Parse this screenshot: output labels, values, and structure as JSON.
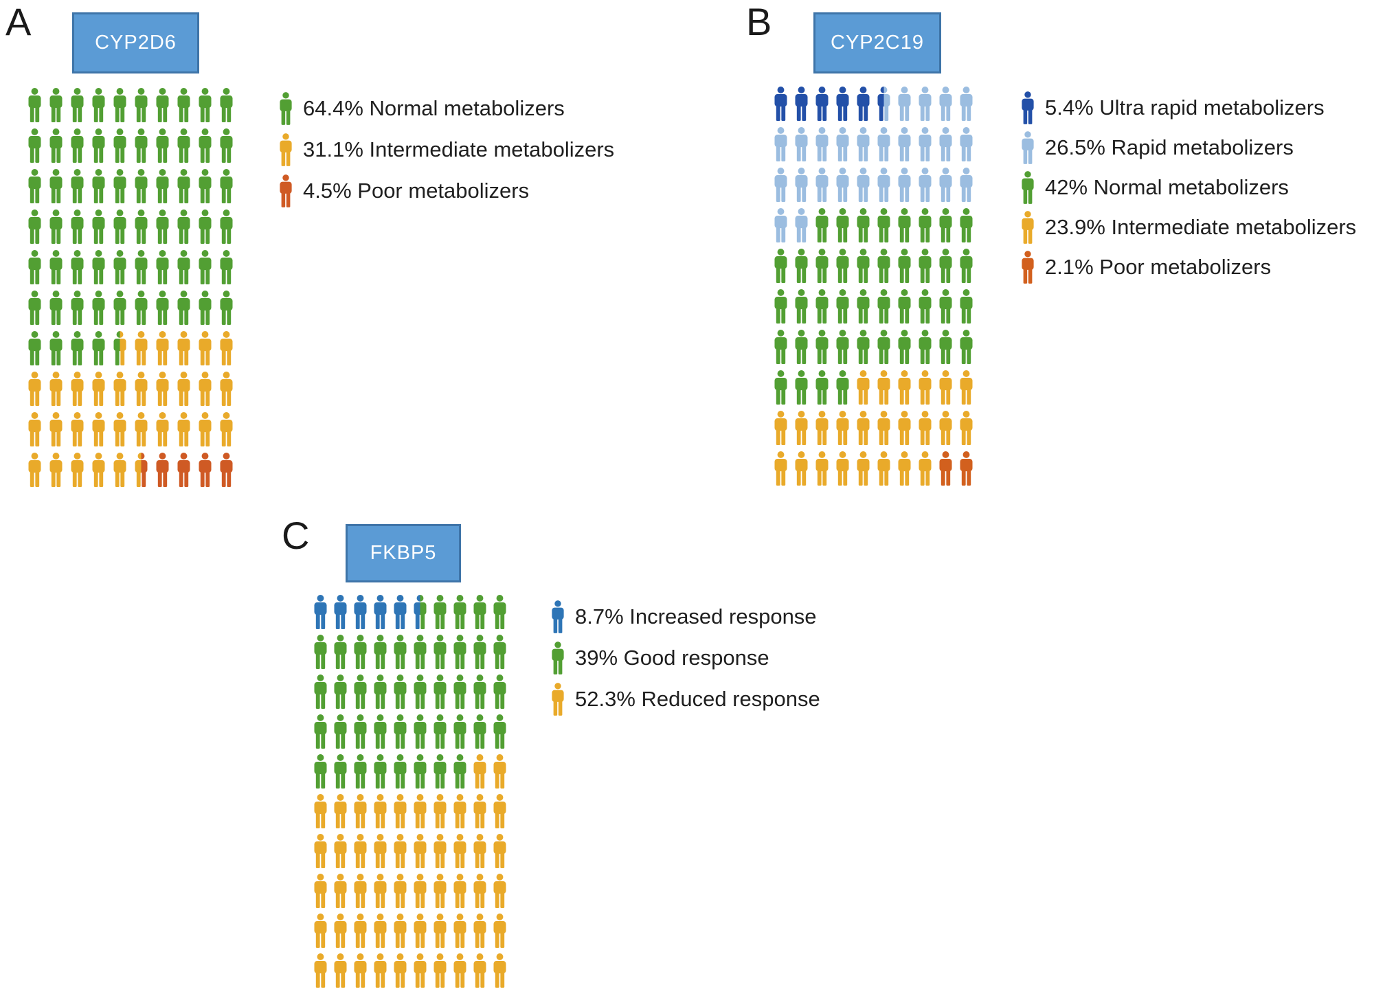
{
  "figure": {
    "background": "#ffffff",
    "title_box": {
      "fill": "#5b9bd5",
      "border": "#3e74a8",
      "text_color": "#ffffff"
    }
  },
  "panels": [
    {
      "letter": "A",
      "gene": "CYP2D6",
      "palette": {
        "G": "#529f33",
        "Y": "#e9aa2a",
        "R": "#cf5a24"
      },
      "legend": [
        {
          "pct": "64.4%",
          "label": "Normal metabolizers",
          "color_key": "G"
        },
        {
          "pct": "31.1%",
          "label": "Intermediate metabolizers",
          "color_key": "Y"
        },
        {
          "pct": "4.5%",
          "label": "Poor metabolizers",
          "color_key": "R"
        }
      ],
      "grid_rows": [
        "G G G G G G G G G G",
        "G G G G G G G G G G",
        "G G G G G G G G G G",
        "G G G G G G G G G G",
        "G G G G G G G G G G",
        "G G G G G G G G G G",
        "G G G G G|Y Y Y Y Y Y",
        "Y Y Y Y Y Y Y Y Y Y",
        "Y Y Y Y Y Y Y Y Y Y",
        "Y Y Y Y Y Y|R R R R R"
      ]
    },
    {
      "letter": "B",
      "gene": "CYP2C19",
      "palette": {
        "U": "#2350a8",
        "L": "#9bbde0",
        "G": "#529f33",
        "Y": "#e9aa2a",
        "R": "#d2601e"
      },
      "legend": [
        {
          "pct": "5.4%",
          "label": "Ultra rapid metabolizers",
          "color_key": "U"
        },
        {
          "pct": "26.5%",
          "label": "Rapid metabolizers",
          "color_key": "L"
        },
        {
          "pct": "42%",
          "label": "Normal metabolizers",
          "color_key": "G"
        },
        {
          "pct": "23.9%",
          "label": "Intermediate metabolizers",
          "color_key": "Y"
        },
        {
          "pct": "2.1%",
          "label": "Poor metabolizers",
          "color_key": "R"
        }
      ],
      "grid_rows": [
        "U U U U U U|L L L L L",
        "L L L L L L L L L L",
        "L L L L L L L L L L",
        "L L G G G G G G G G",
        "G G G G G G G G G G",
        "G G G G G G G G G G",
        "G G G G G G G G G G",
        "G G G G Y Y Y Y Y Y",
        "Y Y Y Y Y Y Y Y Y Y",
        "Y Y Y Y Y Y Y Y R R"
      ]
    },
    {
      "letter": "C",
      "gene": "FKBP5",
      "palette": {
        "B": "#2e75b6",
        "G": "#529f33",
        "Y": "#e9aa2a"
      },
      "legend": [
        {
          "pct": "8.7%",
          "label": "Increased response",
          "color_key": "B"
        },
        {
          "pct": "39%",
          "label": "Good response",
          "color_key": "G"
        },
        {
          "pct": "52.3%",
          "label": "Reduced response",
          "color_key": "Y"
        }
      ],
      "grid_rows": [
        "B B B B B B|G G G G G",
        "G G G G G G G G G G",
        "G G G G G G G G G G",
        "G G G G G G G G G G",
        "G G G G G G G G Y Y",
        "Y Y Y Y Y Y Y Y Y Y",
        "Y Y Y Y Y Y Y Y Y Y",
        "Y Y Y Y Y Y Y Y Y Y",
        "Y Y Y Y Y Y Y Y Y Y",
        "Y Y Y Y Y Y Y Y Y Y"
      ]
    }
  ],
  "chart_data": [
    {
      "type": "pictogram",
      "panel": "A",
      "title": "CYP2D6",
      "categories": [
        "Normal metabolizers",
        "Intermediate metabolizers",
        "Poor metabolizers"
      ],
      "values": [
        64.4,
        31.1,
        4.5
      ],
      "colors": [
        "#529f33",
        "#e9aa2a",
        "#cf5a24"
      ],
      "total_icons": 100,
      "icon_unit_pct": 1,
      "grid": "10x10",
      "legend_position": "right"
    },
    {
      "type": "pictogram",
      "panel": "B",
      "title": "CYP2C19",
      "categories": [
        "Ultra rapid metabolizers",
        "Rapid metabolizers",
        "Normal metabolizers",
        "Intermediate metabolizers",
        "Poor metabolizers"
      ],
      "values": [
        5.4,
        26.5,
        42,
        23.9,
        2.1
      ],
      "colors": [
        "#2350a8",
        "#9bbde0",
        "#529f33",
        "#e9aa2a",
        "#d2601e"
      ],
      "total_icons": 100,
      "icon_unit_pct": 1,
      "grid": "10x10",
      "legend_position": "right"
    },
    {
      "type": "pictogram",
      "panel": "C",
      "title": "FKBP5",
      "categories": [
        "Increased response",
        "Good response",
        "Reduced response"
      ],
      "values": [
        8.7,
        39,
        52.3
      ],
      "colors": [
        "#2e75b6",
        "#529f33",
        "#e9aa2a"
      ],
      "total_icons": 100,
      "icon_unit_pct": 1,
      "grid": "10x10",
      "legend_position": "right"
    }
  ]
}
